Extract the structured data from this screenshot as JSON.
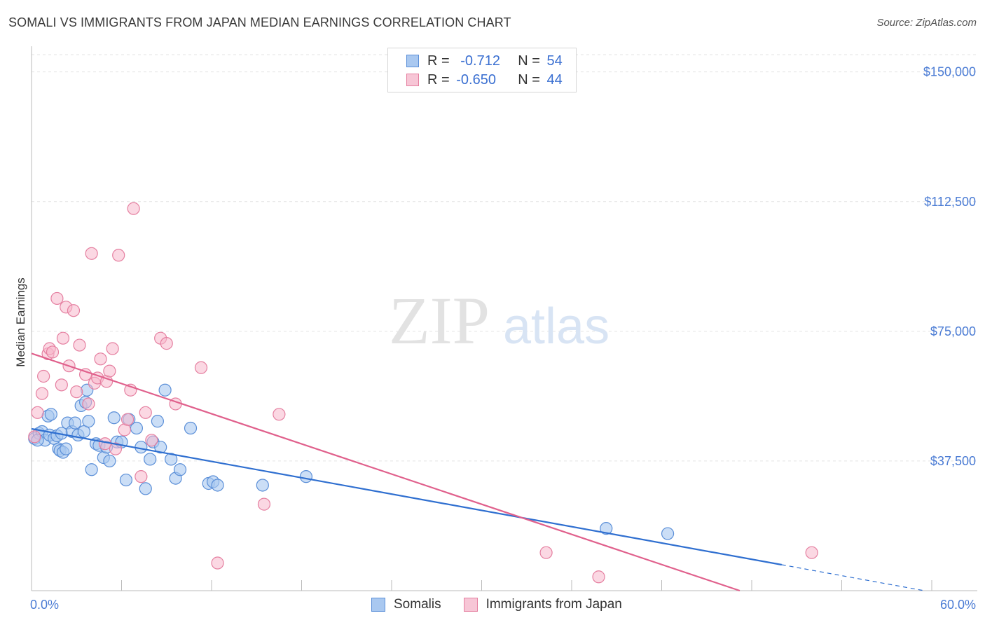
{
  "header": {
    "title": "SOMALI VS IMMIGRANTS FROM JAPAN MEDIAN EARNINGS CORRELATION CHART",
    "source": "Source: ZipAtlas.com"
  },
  "legend_box": {
    "rows": [
      {
        "r_label": "R = ",
        "r_value": "-0.712",
        "n_label": "N = ",
        "n_value": "54"
      },
      {
        "r_label": "R = ",
        "r_value": "-0.650",
        "n_label": "N = ",
        "n_value": "44"
      }
    ]
  },
  "bottom_legend": [
    "Somalis",
    "Immigrants from Japan"
  ],
  "watermark": {
    "part1": "ZIP",
    "part2": "atlas"
  },
  "colors": {
    "somalis_fill": "#a9c8f0",
    "somalis_stroke": "#5b8fd8",
    "somalis_line": "#2f6fd0",
    "japan_fill": "#f7b8cc",
    "japan_stroke": "#e57fa0",
    "japan_line": "#e0608c",
    "tick": "#4a7bd4",
    "grid": "#e3e3e3"
  },
  "chart_data": {
    "type": "scatter",
    "title": "SOMALI VS IMMIGRANTS FROM JAPAN MEDIAN EARNINGS CORRELATION CHART",
    "xlabel": "",
    "ylabel": "Median Earnings",
    "xlim": [
      0,
      60
    ],
    "ylim": [
      0,
      155000
    ],
    "x_tick_labels": [
      "0.0%",
      "60.0%"
    ],
    "y_ticks": [
      37500,
      75000,
      112500,
      150000
    ],
    "y_tick_labels": [
      "$37,500",
      "$75,000",
      "$112,500",
      "$150,000"
    ],
    "grid": true,
    "legend_position": "top-center",
    "series": [
      {
        "name": "Somalis",
        "r": -0.712,
        "n": 54,
        "points": [
          [
            0.2,
            44000
          ],
          [
            0.5,
            45500
          ],
          [
            0.7,
            46000
          ],
          [
            0.9,
            43500
          ],
          [
            1.1,
            50500
          ],
          [
            1.2,
            45000
          ],
          [
            1.3,
            51000
          ],
          [
            1.5,
            44000
          ],
          [
            1.7,
            44800
          ],
          [
            1.8,
            41000
          ],
          [
            1.9,
            40500
          ],
          [
            2.0,
            45500
          ],
          [
            2.1,
            40000
          ],
          [
            2.3,
            41000
          ],
          [
            2.4,
            48500
          ],
          [
            2.7,
            46000
          ],
          [
            2.9,
            48500
          ],
          [
            3.1,
            45000
          ],
          [
            3.3,
            53500
          ],
          [
            3.5,
            46000
          ],
          [
            3.6,
            54500
          ],
          [
            3.7,
            58000
          ],
          [
            3.8,
            49000
          ],
          [
            4.0,
            35000
          ],
          [
            4.3,
            42500
          ],
          [
            4.5,
            42000
          ],
          [
            4.8,
            38500
          ],
          [
            5.0,
            41500
          ],
          [
            5.2,
            37500
          ],
          [
            5.5,
            50000
          ],
          [
            5.7,
            43000
          ],
          [
            6.0,
            43000
          ],
          [
            6.3,
            32000
          ],
          [
            7.0,
            47000
          ],
          [
            7.3,
            41500
          ],
          [
            7.6,
            29500
          ],
          [
            7.9,
            38000
          ],
          [
            8.1,
            43000
          ],
          [
            8.4,
            49000
          ],
          [
            8.6,
            41500
          ],
          [
            8.9,
            58000
          ],
          [
            9.3,
            38000
          ],
          [
            9.6,
            32500
          ],
          [
            9.9,
            35000
          ],
          [
            10.6,
            47000
          ],
          [
            11.8,
            31000
          ],
          [
            12.1,
            31500
          ],
          [
            12.4,
            30500
          ],
          [
            15.4,
            30500
          ],
          [
            18.3,
            33000
          ],
          [
            38.3,
            18000
          ],
          [
            42.4,
            16500
          ],
          [
            0.4,
            43500
          ],
          [
            6.5,
            49500
          ]
        ],
        "trend": {
          "x": [
            0,
            50
          ],
          "y": [
            46800,
            7500
          ],
          "dashed_extension": {
            "x": [
              50,
              59.5
            ],
            "y": [
              7500,
              0
            ]
          }
        }
      },
      {
        "name": "Immigrants from Japan",
        "r": -0.65,
        "n": 44,
        "points": [
          [
            0.2,
            44500
          ],
          [
            0.4,
            51500
          ],
          [
            0.7,
            57000
          ],
          [
            0.8,
            62000
          ],
          [
            1.1,
            68500
          ],
          [
            1.2,
            70000
          ],
          [
            1.4,
            69000
          ],
          [
            1.7,
            84500
          ],
          [
            2.0,
            59500
          ],
          [
            2.1,
            73000
          ],
          [
            2.3,
            82000
          ],
          [
            2.5,
            65000
          ],
          [
            2.8,
            81000
          ],
          [
            3.0,
            57500
          ],
          [
            3.2,
            71000
          ],
          [
            3.6,
            62500
          ],
          [
            3.8,
            54000
          ],
          [
            4.0,
            97500
          ],
          [
            4.2,
            60000
          ],
          [
            4.4,
            61500
          ],
          [
            4.6,
            67000
          ],
          [
            4.9,
            42500
          ],
          [
            5.0,
            60500
          ],
          [
            5.2,
            63500
          ],
          [
            5.4,
            70000
          ],
          [
            5.6,
            41000
          ],
          [
            5.8,
            97000
          ],
          [
            6.2,
            46500
          ],
          [
            6.4,
            49500
          ],
          [
            6.6,
            58000
          ],
          [
            6.8,
            110500
          ],
          [
            7.3,
            33000
          ],
          [
            7.6,
            51500
          ],
          [
            8.0,
            43500
          ],
          [
            8.6,
            73000
          ],
          [
            9.0,
            71500
          ],
          [
            9.6,
            54000
          ],
          [
            11.3,
            64500
          ],
          [
            12.4,
            8000
          ],
          [
            15.5,
            25000
          ],
          [
            16.5,
            51000
          ],
          [
            34.3,
            11000
          ],
          [
            37.8,
            4000
          ],
          [
            52.0,
            11000
          ]
        ],
        "trend": {
          "x": [
            0,
            47.2
          ],
          "y": [
            68600,
            0
          ]
        }
      }
    ]
  }
}
